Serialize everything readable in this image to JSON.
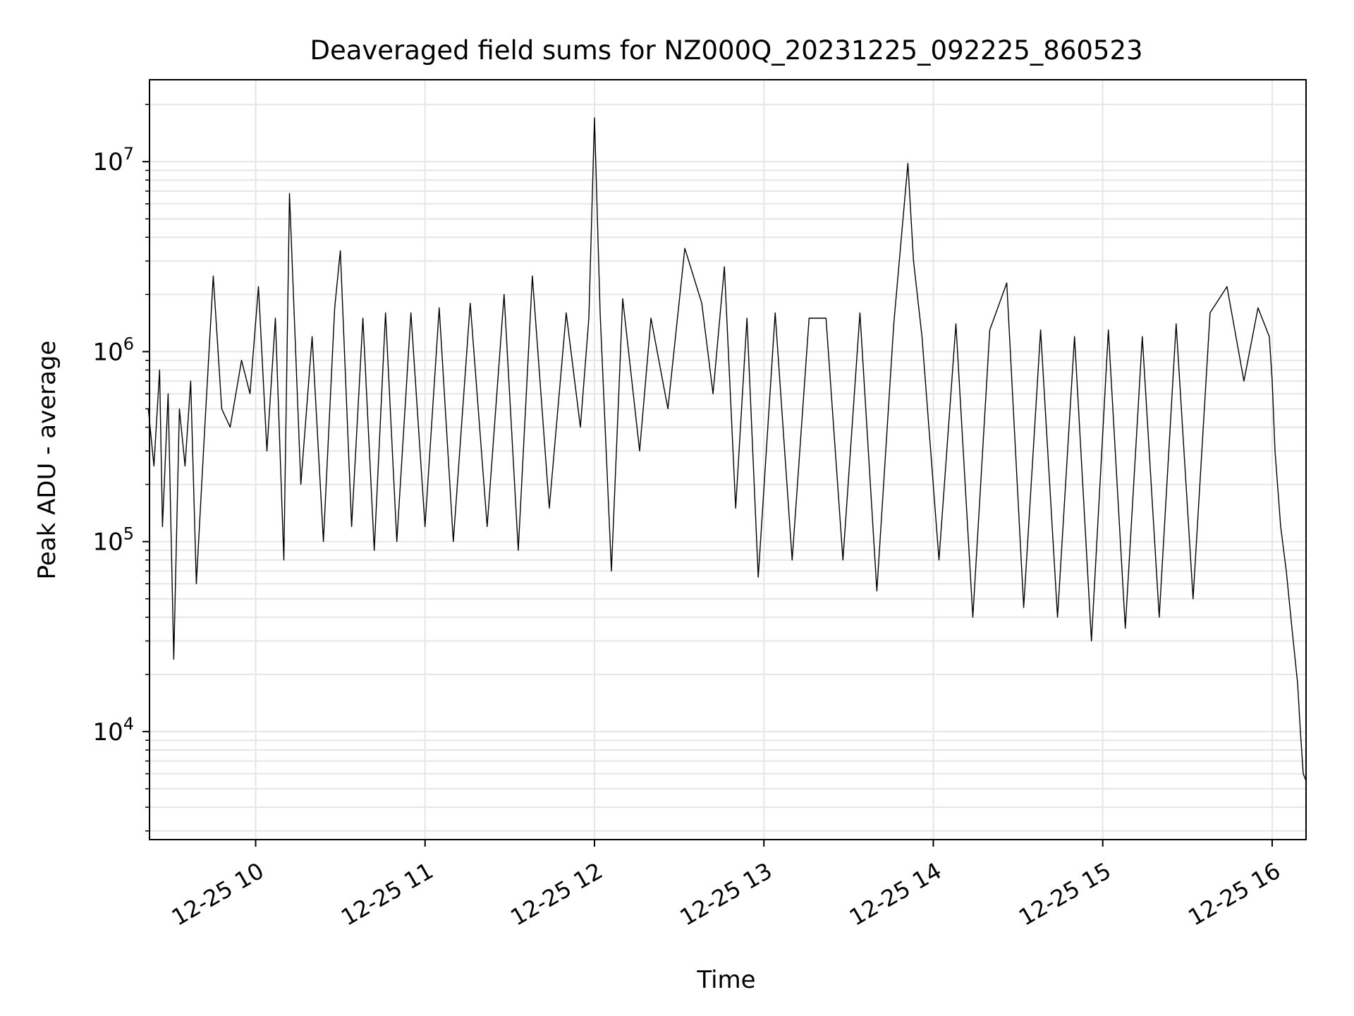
{
  "chart_data": {
    "type": "line",
    "title": "Deaveraged field sums for NZ000Q_20231225_092225_860523",
    "xlabel": "Time",
    "ylabel": "Peak ADU - average",
    "x_type": "time",
    "x_range": [
      "2023-12-25T09:22:25",
      "2023-12-25T16:12:00"
    ],
    "x_ticks": [
      "2023-12-25T10:00",
      "2023-12-25T11:00",
      "2023-12-25T12:00",
      "2023-12-25T13:00",
      "2023-12-25T14:00",
      "2023-12-25T15:00",
      "2023-12-25T16:00"
    ],
    "x_tick_labels": [
      "12-25 10",
      "12-25 11",
      "12-25 12",
      "12-25 13",
      "12-25 14",
      "12-25 15",
      "12-25 16"
    ],
    "y_scale": "log",
    "ylim": [
      2700,
      27000000
    ],
    "y_ticks": [
      10000,
      100000,
      1000000,
      10000000
    ],
    "y_tick_labels": [
      {
        "base": "10",
        "exp": "4"
      },
      {
        "base": "10",
        "exp": "5"
      },
      {
        "base": "10",
        "exp": "6"
      },
      {
        "base": "10",
        "exp": "7"
      }
    ],
    "grid": true,
    "line_color": "#000000",
    "grid_color": "#e6e6e6",
    "series": [
      {
        "x": [
          "2023-12-25T09:22",
          "2023-12-25T09:24",
          "2023-12-25T09:26",
          "2023-12-25T09:27",
          "2023-12-25T09:29",
          "2023-12-25T09:31",
          "2023-12-25T09:33",
          "2023-12-25T09:35",
          "2023-12-25T09:37",
          "2023-12-25T09:39",
          "2023-12-25T09:42",
          "2023-12-25T09:45",
          "2023-12-25T09:48",
          "2023-12-25T09:51",
          "2023-12-25T09:55",
          "2023-12-25T09:58",
          "2023-12-25T10:01",
          "2023-12-25T10:04",
          "2023-12-25T10:07",
          "2023-12-25T10:10",
          "2023-12-25T10:12",
          "2023-12-25T10:16",
          "2023-12-25T10:20",
          "2023-12-25T10:24",
          "2023-12-25T10:28",
          "2023-12-25T10:30",
          "2023-12-25T10:34",
          "2023-12-25T10:38",
          "2023-12-25T10:42",
          "2023-12-25T10:46",
          "2023-12-25T10:50",
          "2023-12-25T10:55",
          "2023-12-25T11:00",
          "2023-12-25T11:05",
          "2023-12-25T11:10",
          "2023-12-25T11:16",
          "2023-12-25T11:22",
          "2023-12-25T11:28",
          "2023-12-25T11:33",
          "2023-12-25T11:38",
          "2023-12-25T11:44",
          "2023-12-25T11:50",
          "2023-12-25T11:55",
          "2023-12-25T11:58",
          "2023-12-25T12:00",
          "2023-12-25T12:02",
          "2023-12-25T12:06",
          "2023-12-25T12:10",
          "2023-12-25T12:16",
          "2023-12-25T12:20",
          "2023-12-25T12:26",
          "2023-12-25T12:32",
          "2023-12-25T12:38",
          "2023-12-25T12:42",
          "2023-12-25T12:46",
          "2023-12-25T12:50",
          "2023-12-25T12:54",
          "2023-12-25T12:58",
          "2023-12-25T13:04",
          "2023-12-25T13:10",
          "2023-12-25T13:16",
          "2023-12-25T13:22",
          "2023-12-25T13:28",
          "2023-12-25T13:34",
          "2023-12-25T13:40",
          "2023-12-25T13:46",
          "2023-12-25T13:51",
          "2023-12-25T13:53",
          "2023-12-25T13:56",
          "2023-12-25T14:02",
          "2023-12-25T14:08",
          "2023-12-25T14:14",
          "2023-12-25T14:20",
          "2023-12-25T14:26",
          "2023-12-25T14:32",
          "2023-12-25T14:38",
          "2023-12-25T14:44",
          "2023-12-25T14:50",
          "2023-12-25T14:56",
          "2023-12-25T15:02",
          "2023-12-25T15:08",
          "2023-12-25T15:14",
          "2023-12-25T15:20",
          "2023-12-25T15:26",
          "2023-12-25T15:32",
          "2023-12-25T15:38",
          "2023-12-25T15:44",
          "2023-12-25T15:50",
          "2023-12-25T15:55",
          "2023-12-25T15:59",
          "2023-12-25T16:00",
          "2023-12-25T16:01",
          "2023-12-25T16:03",
          "2023-12-25T16:05",
          "2023-12-25T16:07",
          "2023-12-25T16:09",
          "2023-12-25T16:10",
          "2023-12-25T16:11",
          "2023-12-25T16:12"
        ],
        "y": [
          500000,
          250000,
          800000,
          120000,
          600000,
          24000,
          500000,
          250000,
          700000,
          60000,
          400000,
          2500000,
          500000,
          400000,
          900000,
          600000,
          2200000,
          300000,
          1500000,
          80000,
          6800000,
          200000,
          1200000,
          100000,
          1700000,
          3400000,
          120000,
          1500000,
          90000,
          1600000,
          100000,
          1600000,
          120000,
          1700000,
          100000,
          1800000,
          120000,
          2000000,
          90000,
          2500000,
          150000,
          1600000,
          400000,
          1500000,
          17000000,
          1600000,
          70000,
          1900000,
          300000,
          1500000,
          500000,
          3500000,
          1800000,
          600000,
          2800000,
          150000,
          1500000,
          65000,
          1600000,
          80000,
          1500000,
          1500000,
          80000,
          1600000,
          55000,
          1400000,
          9800000,
          3000000,
          1200000,
          80000,
          1400000,
          40000,
          1300000,
          2300000,
          45000,
          1300000,
          40000,
          1200000,
          30000,
          1300000,
          35000,
          1200000,
          40000,
          1400000,
          50000,
          1600000,
          2200000,
          700000,
          1700000,
          1200000,
          700000,
          300000,
          120000,
          70000,
          35000,
          18000,
          10000,
          6000,
          5500
        ]
      }
    ]
  }
}
